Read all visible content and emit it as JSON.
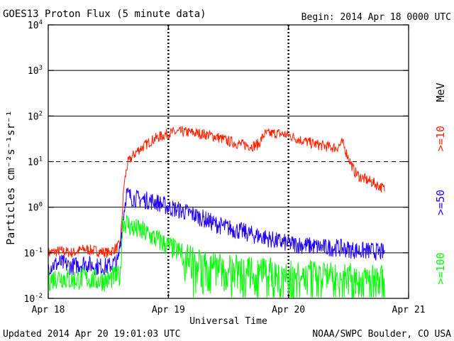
{
  "header": {
    "title": "GOES13 Proton Flux (5 minute data)",
    "begin": "Begin: 2014 Apr 18 0000 UTC"
  },
  "footer": {
    "updated": "Updated 2014 Apr 20 19:01:03 UTC",
    "credit": "NOAA/SWPC Boulder, CO USA"
  },
  "chart_data": {
    "type": "line",
    "title": "GOES13 Proton Flux (5 minute data)",
    "xlabel": "Universal Time",
    "ylabel": "Particles cm⁻²s⁻¹sr⁻¹",
    "y_scale": "log",
    "ylim": [
      0.01,
      10000
    ],
    "x_unit": "days since Apr 18 0000 UTC",
    "xlim": [
      0,
      3
    ],
    "x_ticks": [
      {
        "label": "Apr 18",
        "value": 0
      },
      {
        "label": "Apr 19",
        "value": 1
      },
      {
        "label": "Apr 20",
        "value": 2
      },
      {
        "label": "Apr 21",
        "value": 3
      }
    ],
    "y_ticks": [
      {
        "base": "10",
        "exp": "-2",
        "value": 0.01
      },
      {
        "base": "10",
        "exp": "-1",
        "value": 0.1
      },
      {
        "base": "10",
        "exp": "0",
        "value": 1
      },
      {
        "base": "10",
        "exp": "1",
        "value": 10
      },
      {
        "base": "10",
        "exp": "2",
        "value": 100
      },
      {
        "base": "10",
        "exp": "3",
        "value": 1000
      },
      {
        "base": "10",
        "exp": "4",
        "value": 10000
      }
    ],
    "threshold_line": {
      "value": 10,
      "style": "dashed"
    },
    "unit_label": "MeV",
    "series": [
      {
        "name": ">=10",
        "color": "#ff2000",
        "noise": 0.12,
        "points": [
          [
            0,
            0.1
          ],
          [
            0.1,
            0.11
          ],
          [
            0.2,
            0.1
          ],
          [
            0.3,
            0.12
          ],
          [
            0.4,
            0.11
          ],
          [
            0.5,
            0.1
          ],
          [
            0.55,
            0.12
          ],
          [
            0.6,
            0.15
          ],
          [
            0.63,
            3
          ],
          [
            0.66,
            9
          ],
          [
            0.7,
            13
          ],
          [
            0.75,
            18
          ],
          [
            0.8,
            22
          ],
          [
            0.85,
            28
          ],
          [
            0.9,
            33
          ],
          [
            1.0,
            42
          ],
          [
            1.1,
            45
          ],
          [
            1.2,
            43
          ],
          [
            1.3,
            40
          ],
          [
            1.4,
            35
          ],
          [
            1.5,
            28
          ],
          [
            1.6,
            24
          ],
          [
            1.7,
            22
          ],
          [
            1.75,
            24
          ],
          [
            1.8,
            40
          ],
          [
            1.9,
            42
          ],
          [
            1.95,
            40
          ],
          [
            2.0,
            38
          ],
          [
            2.1,
            30
          ],
          [
            2.2,
            25
          ],
          [
            2.3,
            22
          ],
          [
            2.4,
            20
          ],
          [
            2.45,
            26
          ],
          [
            2.5,
            12
          ],
          [
            2.55,
            6
          ],
          [
            2.6,
            4.5
          ],
          [
            2.7,
            3.5
          ],
          [
            2.8,
            2.5
          ]
        ]
      },
      {
        "name": ">=50",
        "color": "#2000ff",
        "noise": 0.2,
        "points": [
          [
            0,
            0.05
          ],
          [
            0.1,
            0.06
          ],
          [
            0.2,
            0.05
          ],
          [
            0.3,
            0.06
          ],
          [
            0.4,
            0.05
          ],
          [
            0.5,
            0.05
          ],
          [
            0.55,
            0.06
          ],
          [
            0.58,
            0.06
          ],
          [
            0.62,
            0.5
          ],
          [
            0.65,
            2.0
          ],
          [
            0.7,
            1.6
          ],
          [
            0.8,
            1.45
          ],
          [
            0.9,
            1.3
          ],
          [
            1.0,
            1.0
          ],
          [
            1.1,
            0.85
          ],
          [
            1.2,
            0.7
          ],
          [
            1.3,
            0.55
          ],
          [
            1.4,
            0.42
          ],
          [
            1.5,
            0.35
          ],
          [
            1.6,
            0.3
          ],
          [
            1.7,
            0.25
          ],
          [
            1.8,
            0.22
          ],
          [
            1.9,
            0.18
          ],
          [
            2.0,
            0.16
          ],
          [
            2.1,
            0.15
          ],
          [
            2.2,
            0.14
          ],
          [
            2.3,
            0.13
          ],
          [
            2.4,
            0.13
          ],
          [
            2.5,
            0.12
          ],
          [
            2.6,
            0.11
          ],
          [
            2.7,
            0.11
          ],
          [
            2.8,
            0.1
          ]
        ]
      },
      {
        "name": ">=100",
        "color": "#00ff00",
        "noise": 0.25,
        "points": [
          [
            0,
            0.025
          ],
          [
            0.1,
            0.03
          ],
          [
            0.2,
            0.025
          ],
          [
            0.3,
            0.028
          ],
          [
            0.4,
            0.025
          ],
          [
            0.5,
            0.025
          ],
          [
            0.55,
            0.03
          ],
          [
            0.6,
            0.03
          ],
          [
            0.62,
            0.5
          ],
          [
            0.65,
            0.45
          ],
          [
            0.7,
            0.35
          ],
          [
            0.8,
            0.28
          ],
          [
            0.9,
            0.2
          ],
          [
            1.0,
            0.14
          ],
          [
            1.1,
            0.1
          ],
          [
            1.2,
            0.08
          ],
          [
            1.4,
            0.06
          ],
          [
            1.6,
            0.05
          ],
          [
            1.8,
            0.045
          ],
          [
            2.0,
            0.04
          ],
          [
            2.2,
            0.04
          ],
          [
            2.4,
            0.035
          ],
          [
            2.6,
            0.035
          ],
          [
            2.8,
            0.03
          ]
        ]
      }
    ]
  }
}
